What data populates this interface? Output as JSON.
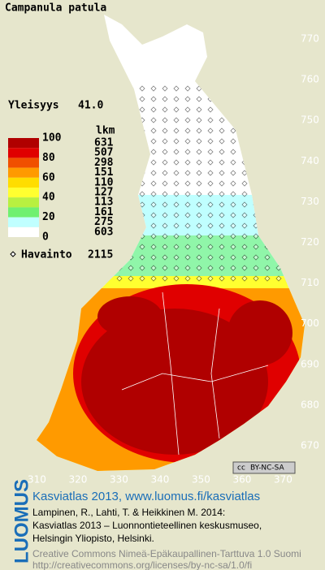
{
  "title": "Campanula patula",
  "frequency": {
    "label": "Yleisyys",
    "value": "41.0"
  },
  "legend": {
    "header": "lkm",
    "scale_labels": [
      100,
      80,
      60,
      40,
      20,
      0
    ],
    "classes": [
      {
        "count": 631,
        "color": "#b00000"
      },
      {
        "count": 507,
        "color": "#e00000"
      },
      {
        "count": 298,
        "color": "#f05000"
      },
      {
        "count": 151,
        "color": "#ff9a00"
      },
      {
        "count": 110,
        "color": "#ffdd00"
      },
      {
        "count": 127,
        "color": "#ffff30"
      },
      {
        "count": 113,
        "color": "#b8f040"
      },
      {
        "count": 161,
        "color": "#70f070"
      },
      {
        "count": 275,
        "color": "#c0ffff"
      },
      {
        "count": 603,
        "color": "#ffffff"
      }
    ],
    "observation_label": "Havainto",
    "observation_count": 2115
  },
  "map": {
    "y_ticks": [
      770,
      760,
      750,
      740,
      730,
      720,
      710,
      700,
      690,
      680,
      670
    ],
    "x_ticks": [
      310,
      320,
      330,
      340,
      350,
      360,
      370
    ]
  },
  "badge": {
    "cc": "cc",
    "license": "BY-NC-SA"
  },
  "footer": {
    "brand": "LUOMUS",
    "headline": "Kasviatlas 2013, www.luomus.fi/kasviatlas",
    "citation": [
      "Lampinen, R., Lahti, T. & Heikkinen M. 2014:",
      "Kasviatlas 2013 – Luonnontieteellinen keskusmuseo,",
      "Helsingin Yliopisto, Helsinki."
    ],
    "license": [
      "Creative Commons Nimeä-Epäkaupallinen-Tarttuva 1.0 Suomi",
      "http://creativecommons.org/licenses/by-nc-sa/1.0/fi"
    ]
  }
}
